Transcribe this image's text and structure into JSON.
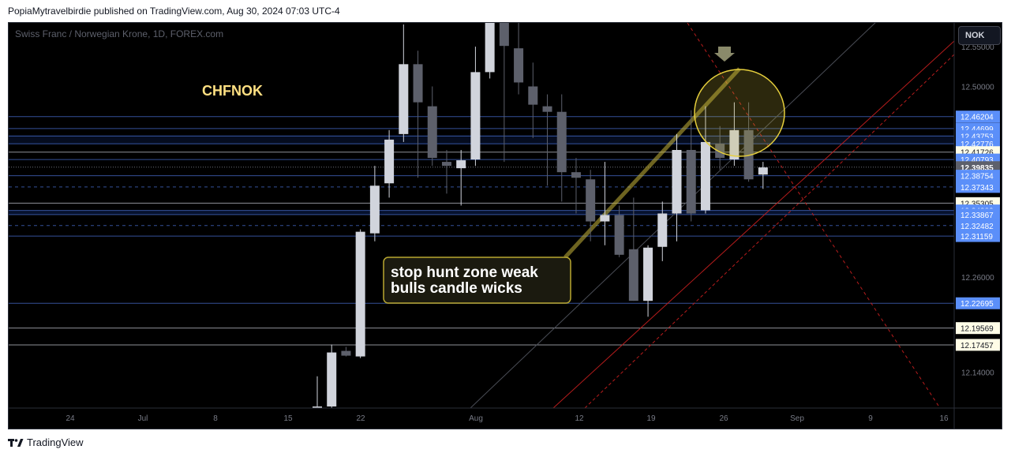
{
  "publisher_line": "PopiaMytravelbirdie published on TradingView.com, Aug 30, 2024 07:03 UTC-4",
  "symbol_title": "Swiss Franc / Norwegian Krone, 1D, FOREX.com",
  "currency_button": "NOK",
  "brand": "TradingView",
  "colors": {
    "up": "#d1d4dc",
    "down": "#5d606b",
    "zone_blue": "#2962ff",
    "level_white": "#b2b5be",
    "callout": "#c9b73a",
    "trend_red": "#b71c1c",
    "label_blue": "#5b8ff9",
    "label_yellow": "#fffde7",
    "current_price": "#5d606b"
  },
  "chart_data": {
    "type": "candlestick",
    "title": "CHFNOK",
    "x_tick_labels": [
      "24",
      "Jul",
      "8",
      "15",
      "22",
      "Aug",
      "12",
      "19",
      "26",
      "Sep",
      "9",
      "16"
    ],
    "y_tick_labels": [
      "12.55000",
      "12.50000",
      "12.26000",
      "12.14000"
    ],
    "ylim": [
      12.095,
      12.58
    ],
    "candles": [
      {
        "date": "Jul 18",
        "open": 12.095,
        "high": 12.135,
        "low": 12.092,
        "close": 12.097
      },
      {
        "date": "Jul 19",
        "open": 12.097,
        "high": 12.175,
        "low": 12.095,
        "close": 12.165
      },
      {
        "date": "Jul 22",
        "open": 12.167,
        "high": 12.172,
        "low": 12.16,
        "close": 12.161
      },
      {
        "date": "Jul 23",
        "open": 12.16,
        "high": 12.32,
        "low": 12.158,
        "close": 12.317
      },
      {
        "date": "Jul 24",
        "open": 12.315,
        "high": 12.4,
        "low": 12.305,
        "close": 12.375
      },
      {
        "date": "Jul 25",
        "open": 12.378,
        "high": 12.445,
        "low": 12.36,
        "close": 12.433
      },
      {
        "date": "Jul 26",
        "open": 12.44,
        "high": 12.578,
        "low": 12.43,
        "close": 12.528
      },
      {
        "date": "Jul 29",
        "open": 12.528,
        "high": 12.545,
        "low": 12.385,
        "close": 12.48
      },
      {
        "date": "Jul 30",
        "open": 12.475,
        "high": 12.5,
        "low": 12.4,
        "close": 12.41
      },
      {
        "date": "Jul 31",
        "open": 12.405,
        "high": 12.42,
        "low": 12.365,
        "close": 12.4
      },
      {
        "date": "Aug 1",
        "open": 12.397,
        "high": 12.42,
        "low": 12.35,
        "close": 12.407
      },
      {
        "date": "Aug 2",
        "open": 12.408,
        "high": 12.55,
        "low": 12.4,
        "close": 12.518
      },
      {
        "date": "Aug 5",
        "open": 12.518,
        "high": 12.6,
        "low": 12.51,
        "close": 12.6
      },
      {
        "date": "Aug 6",
        "open": 12.6,
        "high": 12.625,
        "low": 12.405,
        "close": 12.551
      },
      {
        "date": "Aug 7",
        "open": 12.548,
        "high": 12.6,
        "low": 12.49,
        "close": 12.505
      },
      {
        "date": "Aug 8",
        "open": 12.5,
        "high": 12.53,
        "low": 12.435,
        "close": 12.477
      },
      {
        "date": "Aug 9",
        "open": 12.475,
        "high": 12.49,
        "low": 12.375,
        "close": 12.468
      },
      {
        "date": "Aug 12",
        "open": 12.468,
        "high": 12.49,
        "low": 12.355,
        "close": 12.392
      },
      {
        "date": "Aug 13",
        "open": 12.392,
        "high": 12.41,
        "low": 12.34,
        "close": 12.385
      },
      {
        "date": "Aug 14",
        "open": 12.383,
        "high": 12.395,
        "low": 12.305,
        "close": 12.33
      },
      {
        "date": "Aug 15",
        "open": 12.33,
        "high": 12.405,
        "low": 12.3,
        "close": 12.338
      },
      {
        "date": "Aug 16",
        "open": 12.338,
        "high": 12.35,
        "low": 12.285,
        "close": 12.288
      },
      {
        "date": "Aug 19",
        "open": 12.295,
        "high": 12.36,
        "low": 12.23,
        "close": 12.23
      },
      {
        "date": "Aug 20",
        "open": 12.23,
        "high": 12.3,
        "low": 12.21,
        "close": 12.297
      },
      {
        "date": "Aug 21",
        "open": 12.298,
        "high": 12.355,
        "low": 12.28,
        "close": 12.34
      },
      {
        "date": "Aug 22",
        "open": 12.34,
        "high": 12.44,
        "low": 12.305,
        "close": 12.42
      },
      {
        "date": "Aug 23",
        "open": 12.42,
        "high": 12.47,
        "low": 12.33,
        "close": 12.34
      },
      {
        "date": "Aug 26",
        "open": 12.344,
        "high": 12.475,
        "low": 12.34,
        "close": 12.43
      },
      {
        "date": "Aug 27",
        "open": 12.428,
        "high": 12.45,
        "low": 12.395,
        "close": 12.41
      },
      {
        "date": "Aug 28",
        "open": 12.408,
        "high": 12.48,
        "low": 12.4,
        "close": 12.445
      },
      {
        "date": "Aug 29",
        "open": 12.445,
        "high": 12.48,
        "low": 12.38,
        "close": 12.383
      },
      {
        "date": "Aug 30",
        "open": 12.389,
        "high": 12.405,
        "low": 12.371,
        "close": 12.398
      }
    ],
    "levels": [
      {
        "value": 12.46204,
        "label": "12.46204",
        "style": "blue"
      },
      {
        "value": 12.44699,
        "label": "12.44699",
        "style": "blue"
      },
      {
        "value": 12.43753,
        "label": "12.43753",
        "style": "blue"
      },
      {
        "value": 12.42776,
        "label": "12.42776",
        "style": "blue"
      },
      {
        "value": 12.41726,
        "label": "12.41726",
        "style": "yellow"
      },
      {
        "value": 12.40793,
        "label": "12.40793",
        "style": "blue"
      },
      {
        "value": 12.39835,
        "label": "12.39835",
        "style": "current"
      },
      {
        "value": 12.38754,
        "label": "12.38754",
        "style": "blue"
      },
      {
        "value": 12.37343,
        "label": "12.37343",
        "style": "blue"
      },
      {
        "value": 12.35305,
        "label": "12.35305",
        "style": "yellow"
      },
      {
        "value": 12.34382,
        "label": "12.34382",
        "style": "blue"
      },
      {
        "value": 12.33867,
        "label": "12.33867",
        "style": "blue"
      },
      {
        "value": 12.32482,
        "label": "12.32482",
        "style": "blue"
      },
      {
        "value": 12.31159,
        "label": "12.31159",
        "style": "blue"
      },
      {
        "value": 12.22695,
        "label": "12.22695",
        "style": "blue"
      },
      {
        "value": 12.19569,
        "label": "12.19569",
        "style": "yellow"
      },
      {
        "value": 12.17457,
        "label": "12.17457",
        "style": "yellow"
      }
    ],
    "annotations": {
      "callout_text_line1": "stop hunt zone weak",
      "callout_text_line2": "bulls candle wicks"
    },
    "grid": false
  }
}
